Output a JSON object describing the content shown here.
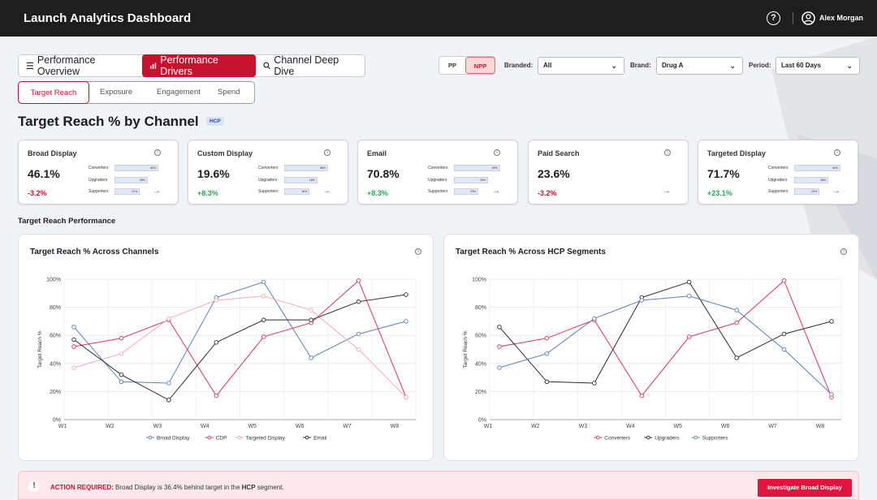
{
  "header": {
    "title": "Launch Analytics Dashboard",
    "help_icon": "help-circle-icon",
    "user_icon": "user-circle-icon",
    "user_name": "Alex Morgan"
  },
  "main_tabs": [
    {
      "label": "Performance Overview",
      "icon": "list-icon",
      "active": false
    },
    {
      "label": "Performance Drivers",
      "icon": "bar-chart-icon",
      "active": true
    },
    {
      "label": "Channel Deep Dive",
      "icon": "search-icon",
      "active": false
    }
  ],
  "sub_tabs": [
    {
      "label": "Target Reach",
      "active": true
    },
    {
      "label": "Exposure",
      "active": false
    },
    {
      "label": "Engagement",
      "active": false
    },
    {
      "label": "Spend",
      "active": false
    }
  ],
  "pp_toggle": {
    "options": [
      "PP",
      "NPP"
    ],
    "selected": "NPP"
  },
  "filters": {
    "branded": {
      "label": "Branded:",
      "value": "All"
    },
    "brand": {
      "label": "Brand:",
      "value": "Drug A"
    },
    "period": {
      "label": "Period:",
      "value": "Last 60 Days"
    }
  },
  "page": {
    "title": "Target Reach % by Channel",
    "badge": "HCP"
  },
  "kpi_cards": [
    {
      "name": "Broad Display",
      "value": "46.1%",
      "change": "-3.2%",
      "trend": "negative",
      "bars": [
        {
          "label": "Converters",
          "value": "50%",
          "fraction": 0.9
        },
        {
          "label": "Upgraders",
          "value": "28%",
          "fraction": 0.68
        },
        {
          "label": "Supporters",
          "value": "22%",
          "fraction": 0.52
        }
      ]
    },
    {
      "name": "Custom Display",
      "value": "19.6%",
      "change": "+8.3%",
      "trend": "positive",
      "bars": [
        {
          "label": "Converters",
          "value": "58%",
          "fraction": 0.9
        },
        {
          "label": "Upgraders",
          "value": "18%",
          "fraction": 0.68
        },
        {
          "label": "Supporters",
          "value": "16%",
          "fraction": 0.52
        }
      ]
    },
    {
      "name": "Email",
      "value": "70.8%",
      "change": "+8.3%",
      "trend": "positive",
      "bars": [
        {
          "label": "Converters",
          "value": "50%",
          "fraction": 0.95
        },
        {
          "label": "Upgraders",
          "value": "30%",
          "fraction": 0.7
        },
        {
          "label": "Supporters",
          "value": "23%",
          "fraction": 0.5
        }
      ]
    },
    {
      "name": "Paid Search",
      "value": "23.6%",
      "change": "-3.2%",
      "trend": "negative",
      "bars": []
    },
    {
      "name": "Targeted Display",
      "value": "71.7%",
      "change": "+23.1%",
      "trend": "positive",
      "bars": [
        {
          "label": "Converters",
          "value": "50%",
          "fraction": 0.95
        },
        {
          "label": "Upgraders",
          "value": "28%",
          "fraction": 0.7
        },
        {
          "label": "Supporters",
          "value": "23%",
          "fraction": 0.52
        }
      ]
    }
  ],
  "section_title": "Target Reach Performance",
  "chart_data": [
    {
      "type": "line",
      "title": "Target Reach % Across Channels",
      "ylabel": "Target Reach %",
      "xlabel": "",
      "ylim": [
        0,
        100
      ],
      "yticks": [
        "0%",
        "20%",
        "40%",
        "60%",
        "80%",
        "100%"
      ],
      "x": [
        "W1",
        "W2",
        "W3",
        "W4",
        "W5",
        "W6",
        "W7",
        "W8"
      ],
      "grid": true,
      "legend": "bottom",
      "series": [
        {
          "name": "Broad Display",
          "color": "#5b7fb5",
          "values": [
            66,
            27,
            26,
            87,
            98,
            44,
            61,
            70
          ]
        },
        {
          "name": "CDP",
          "color": "#d8365a",
          "values": [
            52,
            58,
            71,
            17,
            59,
            69,
            99,
            16
          ]
        },
        {
          "name": "Targeted Display",
          "color": "#f5aab8",
          "values": [
            37,
            47,
            72,
            85,
            88,
            78,
            50,
            16
          ]
        },
        {
          "name": "Email",
          "color": "#2b2b2b",
          "values": [
            57,
            32,
            14,
            55,
            71,
            71,
            84,
            89
          ]
        }
      ]
    },
    {
      "type": "line",
      "title": "Target Reach % Across HCP Segments",
      "ylabel": "Target Reach %",
      "xlabel": "",
      "ylim": [
        0,
        100
      ],
      "yticks": [
        "0%",
        "20%",
        "40%",
        "60%",
        "80%",
        "100%"
      ],
      "x": [
        "W1",
        "W2",
        "W3",
        "W4",
        "W5",
        "W6",
        "W7",
        "W8"
      ],
      "grid": true,
      "legend": "bottom",
      "series": [
        {
          "name": "Converters",
          "color": "#d8365a",
          "values": [
            52,
            58,
            71,
            17,
            59,
            69,
            99,
            16
          ]
        },
        {
          "name": "Upgraders",
          "color": "#2b2b2b",
          "values": [
            66,
            27,
            26,
            87,
            98,
            44,
            61,
            70
          ]
        },
        {
          "name": "Supporters",
          "color": "#5b7fb5",
          "values": [
            37,
            47,
            72,
            85,
            88,
            78,
            50,
            18
          ]
        }
      ]
    }
  ],
  "action": {
    "icon": "alert-icon",
    "required_label": "ACTION REQUIRED:",
    "message_pre": " Broad Display is 36.4% behind target in the ",
    "segment": "HCP",
    "message_post": " segment.",
    "button_label": "Investigate Broad Display"
  },
  "colors": {
    "brand": "#c4122f",
    "header_bg": "#1e1e1e",
    "positive": "#27a35a",
    "negative": "#c4122f"
  }
}
